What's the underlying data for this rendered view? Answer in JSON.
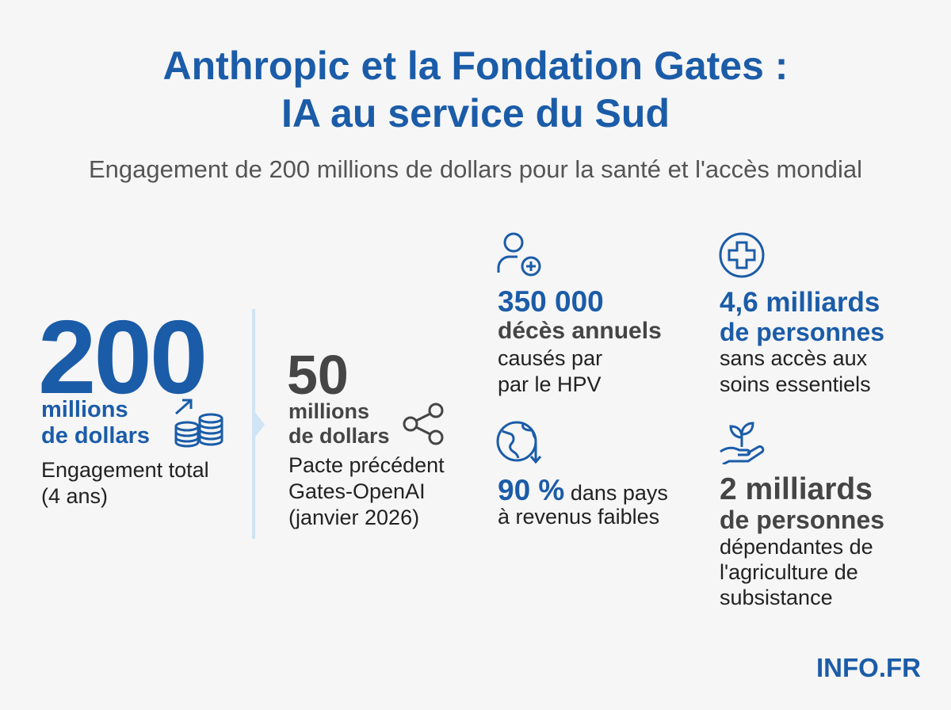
{
  "header": {
    "title": [
      "Anthropic et la Fondation Gates :",
      "IA au service du Sud"
    ],
    "subtitle": "Engagement de 200 millions de dollars pour la santé et l'accès mondial"
  },
  "main": {
    "figure": "200",
    "unit": [
      "millions",
      "de dollars"
    ],
    "caption": [
      "Engagement total",
      "(4 ans)"
    ]
  },
  "previous": {
    "figure": "50",
    "unit": [
      "millions",
      "de dollars"
    ],
    "caption": [
      "Pacte précédent",
      "Gates-OpenAI",
      "(janvier 2026)"
    ]
  },
  "stats": [
    {
      "figure": "350 000",
      "subject": "décès annuels",
      "caption": [
        "causés par",
        "par le HPV"
      ]
    },
    {
      "figure": "4,6 milliards",
      "subject": "de personnes",
      "caption": [
        "sans accès aux",
        "soins essentiels"
      ]
    },
    {
      "figure": "90 %",
      "caption": [
        " dans pays",
        "à revenus faibles"
      ]
    },
    {
      "figure": "2 milliards",
      "subject": "de personnes",
      "caption": [
        "dépendantes de",
        "l'agriculture de",
        "subsistance"
      ]
    }
  ],
  "footer": {
    "logo": "INFO.FR"
  }
}
